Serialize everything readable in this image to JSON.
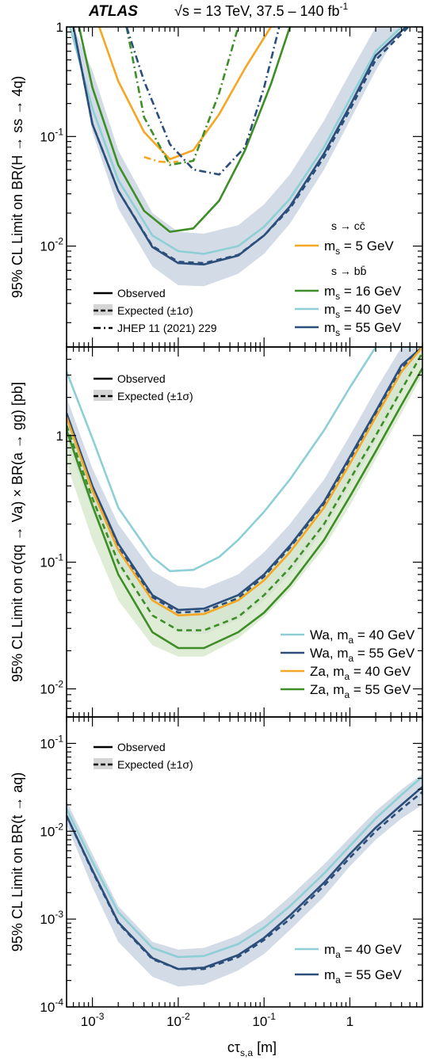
{
  "header": {
    "experiment": "ATLAS",
    "energy": "√s = 13 TeV, 37.5 – 140 fb",
    "energy_sup": "-1"
  },
  "xaxis": {
    "label": "cτ",
    "label_sub": "s,a",
    "label_unit": " [m]",
    "scale": "log",
    "range": [
      0.0005,
      7
    ],
    "ticks": [
      {
        "v": 0.001,
        "text": "10",
        "sup": "-3"
      },
      {
        "v": 0.01,
        "text": "10",
        "sup": "-2"
      },
      {
        "v": 0.1,
        "text": "10",
        "sup": "-1"
      },
      {
        "v": 1,
        "text": "1",
        "sup": ""
      }
    ]
  },
  "chart_data": [
    {
      "type": "line",
      "ylabel": "95% CL Limit on BR(H → ss → 4q)",
      "yscale": "log",
      "ylim": [
        0.0012,
        1
      ],
      "yticks": [
        {
          "v": 1,
          "text": "1",
          "sup": ""
        },
        {
          "v": 0.1,
          "text": "10",
          "sup": "-1"
        },
        {
          "v": 0.01,
          "text": "10",
          "sup": "-2"
        }
      ],
      "legend_style": [
        {
          "label": "Observed",
          "style": "solid"
        },
        {
          "label": "Expected (±1σ)",
          "style": "dashed-band"
        },
        {
          "label": "JHEP 11 (2021) 229",
          "style": "dashdot"
        }
      ],
      "legend_groups": [
        {
          "title": "s → cc̄",
          "entries": [
            {
              "label": "m",
              "sub": "s",
              "rest": " = 5 GeV",
              "color": "#F5A623"
            }
          ]
        },
        {
          "title": "s → bb̄",
          "entries": [
            {
              "label": "m",
              "sub": "s",
              "rest": " = 16 GeV",
              "color": "#3E8E28"
            },
            {
              "label": "m",
              "sub": "s",
              "rest": " = 40 GeV",
              "color": "#8ECFD6"
            },
            {
              "label": "m",
              "sub": "s",
              "rest": " = 55 GeV",
              "color": "#2B4E7A"
            }
          ]
        }
      ],
      "band": {
        "color": "#D2DBE6",
        "x": [
          0.0006,
          0.001,
          0.002,
          0.005,
          0.01,
          0.02,
          0.05,
          0.1,
          0.2,
          0.5,
          1,
          2,
          4
        ],
        "lo": [
          1.0,
          0.11,
          0.022,
          0.0065,
          0.0044,
          0.0043,
          0.0056,
          0.0085,
          0.016,
          0.05,
          0.14,
          0.4,
          1.0
        ],
        "hi": [
          1.0,
          0.4,
          0.075,
          0.02,
          0.0135,
          0.013,
          0.0155,
          0.024,
          0.045,
          0.14,
          0.38,
          1.0,
          1.0
        ]
      },
      "series": [
        {
          "name": "m_s = 5 GeV",
          "color": "#F5A623",
          "style": "solid",
          "x": [
            0.0012,
            0.002,
            0.004,
            0.008,
            0.015,
            0.03,
            0.06,
            0.12
          ],
          "y": [
            1.0,
            0.32,
            0.11,
            0.062,
            0.075,
            0.16,
            0.42,
            1.0
          ]
        },
        {
          "name": "m_s = 5 GeV (JHEP)",
          "color": "#F5A623",
          "style": "dashdot",
          "x": [
            0.004,
            0.006,
            0.008,
            0.01
          ],
          "y": [
            0.065,
            0.059,
            0.058,
            0.059
          ]
        },
        {
          "name": "m_s = 16 GeV",
          "color": "#3E8E28",
          "style": "solid",
          "x": [
            0.0007,
            0.001,
            0.002,
            0.004,
            0.008,
            0.015,
            0.03,
            0.06,
            0.12,
            0.2
          ],
          "y": [
            1.0,
            0.28,
            0.055,
            0.021,
            0.0135,
            0.0145,
            0.026,
            0.075,
            0.3,
            1.0
          ]
        },
        {
          "name": "m_s = 16 GeV (JHEP)",
          "color": "#3E8E28",
          "style": "dashdot",
          "x": [
            0.0025,
            0.004,
            0.008,
            0.015,
            0.03,
            0.05
          ],
          "y": [
            1.0,
            0.15,
            0.055,
            0.06,
            0.25,
            1.0
          ]
        },
        {
          "name": "m_s = 40 GeV",
          "color": "#8ECFD6",
          "style": "solid",
          "x": [
            0.00055,
            0.001,
            0.002,
            0.005,
            0.01,
            0.02,
            0.05,
            0.1,
            0.2,
            0.5,
            1,
            2,
            4
          ],
          "y": [
            1.0,
            0.18,
            0.04,
            0.0125,
            0.009,
            0.0085,
            0.01,
            0.015,
            0.027,
            0.08,
            0.22,
            0.6,
            1.0
          ]
        },
        {
          "name": "m_s = 55 GeV",
          "color": "#2B4E7A",
          "style": "solid",
          "x": [
            0.0006,
            0.001,
            0.002,
            0.005,
            0.01,
            0.02,
            0.05,
            0.1,
            0.2,
            0.5,
            1,
            2,
            4.5
          ],
          "y": [
            1.0,
            0.13,
            0.032,
            0.0098,
            0.007,
            0.0068,
            0.0082,
            0.0125,
            0.023,
            0.07,
            0.19,
            0.55,
            1.0
          ]
        },
        {
          "name": "m_s = 55 GeV expected",
          "color": "#2B4E7A",
          "style": "dashed",
          "x": [
            0.0006,
            0.001,
            0.002,
            0.005,
            0.01,
            0.02,
            0.05,
            0.1,
            0.2,
            0.5,
            1,
            2,
            4.8
          ],
          "y": [
            1.0,
            0.13,
            0.032,
            0.01,
            0.0072,
            0.007,
            0.0083,
            0.0125,
            0.022,
            0.065,
            0.175,
            0.5,
            1.0
          ]
        },
        {
          "name": "m_s = 55 GeV (JHEP)",
          "color": "#2B4E7A",
          "style": "dashdot",
          "x": [
            0.0025,
            0.004,
            0.008,
            0.015,
            0.03,
            0.06,
            0.1,
            0.15
          ],
          "y": [
            1.0,
            0.32,
            0.085,
            0.05,
            0.045,
            0.08,
            0.28,
            1.0
          ]
        }
      ]
    },
    {
      "type": "line",
      "ylabel": "95% CL Limit on σ(qq → Va) × BR(a → gg) [pb]",
      "yscale": "log",
      "ylim": [
        0.006,
        5
      ],
      "yticks": [
        {
          "v": 1,
          "text": "1",
          "sup": ""
        },
        {
          "v": 0.1,
          "text": "10",
          "sup": "-1"
        },
        {
          "v": 0.01,
          "text": "10",
          "sup": "-2"
        }
      ],
      "legend_style": [
        {
          "label": "Observed",
          "style": "solid"
        },
        {
          "label": "Expected (±1σ)",
          "style": "dashed-band"
        }
      ],
      "legend_entries": [
        {
          "label": "Wa, m",
          "sub": "a",
          "rest": " = 40 GeV",
          "color": "#8ECFD6"
        },
        {
          "label": "Wa, m",
          "sub": "a",
          "rest": " = 55 GeV",
          "color": "#2B4E7A"
        },
        {
          "label": "Za, m",
          "sub": "a",
          "rest": " = 40 GeV",
          "color": "#F5A623"
        },
        {
          "label": "Za, m",
          "sub": "a",
          "rest": " = 55 GeV",
          "color": "#3E8E28"
        }
      ],
      "band": {
        "color": "#D2DBE6",
        "x": [
          0.0005,
          0.001,
          0.002,
          0.005,
          0.01,
          0.02,
          0.05,
          0.1,
          0.2,
          0.5,
          1,
          2,
          4,
          7
        ],
        "lo": [
          0.9,
          0.25,
          0.09,
          0.04,
          0.028,
          0.027,
          0.035,
          0.05,
          0.08,
          0.18,
          0.4,
          0.9,
          2.2,
          4.5
        ],
        "hi": [
          2.0,
          0.55,
          0.2,
          0.085,
          0.065,
          0.062,
          0.08,
          0.12,
          0.2,
          0.45,
          1.0,
          2.3,
          5,
          5
        ]
      },
      "band2": {
        "color": "#D8E8CC",
        "x": [
          0.0005,
          0.001,
          0.002,
          0.005,
          0.01,
          0.02,
          0.05,
          0.1,
          0.2,
          0.5,
          1,
          2,
          4,
          7
        ],
        "lo": [
          0.6,
          0.15,
          0.05,
          0.022,
          0.018,
          0.018,
          0.025,
          0.037,
          0.06,
          0.13,
          0.28,
          0.65,
          1.5,
          3
        ],
        "hi": [
          1.3,
          0.35,
          0.12,
          0.05,
          0.04,
          0.04,
          0.055,
          0.08,
          0.13,
          0.3,
          0.65,
          1.5,
          3.4,
          5
        ]
      },
      "series": [
        {
          "name": "Wa, m_a = 40 GeV",
          "color": "#8ECFD6",
          "style": "solid",
          "x": [
            0.0005,
            0.001,
            0.002,
            0.005,
            0.008,
            0.015,
            0.03,
            0.05,
            0.1,
            0.2,
            0.5,
            1,
            2,
            4,
            7
          ],
          "y": [
            3.2,
            0.95,
            0.27,
            0.11,
            0.085,
            0.087,
            0.11,
            0.15,
            0.25,
            0.45,
            1.1,
            2.4,
            5,
            5,
            5
          ]
        },
        {
          "name": "Wa, m_a = 55 GeV",
          "color": "#2B4E7A",
          "style": "solid",
          "x": [
            0.0005,
            0.001,
            0.002,
            0.005,
            0.01,
            0.02,
            0.05,
            0.1,
            0.2,
            0.5,
            1,
            2,
            4,
            7
          ],
          "y": [
            1.5,
            0.4,
            0.14,
            0.055,
            0.042,
            0.043,
            0.055,
            0.08,
            0.135,
            0.3,
            0.68,
            1.55,
            3.6,
            5
          ]
        },
        {
          "name": "Wa, m_a = 55 GeV expected",
          "color": "#2B4E7A",
          "style": "dashed",
          "x": [
            0.0005,
            0.001,
            0.002,
            0.005,
            0.01,
            0.02,
            0.05,
            0.1,
            0.2,
            0.5,
            1,
            2,
            4,
            7
          ],
          "y": [
            1.4,
            0.38,
            0.13,
            0.053,
            0.04,
            0.041,
            0.052,
            0.077,
            0.13,
            0.29,
            0.65,
            1.5,
            3.4,
            5
          ]
        },
        {
          "name": "Za, m_a = 40 GeV",
          "color": "#F5A623",
          "style": "solid",
          "x": [
            0.0005,
            0.001,
            0.002,
            0.005,
            0.01,
            0.02,
            0.05,
            0.1,
            0.2,
            0.5,
            1,
            2,
            4,
            7
          ],
          "y": [
            1.4,
            0.37,
            0.125,
            0.05,
            0.038,
            0.039,
            0.05,
            0.072,
            0.12,
            0.27,
            0.6,
            1.4,
            3.2,
            5
          ]
        },
        {
          "name": "Za, m_a = 55 GeV",
          "color": "#3E8E28",
          "style": "solid",
          "x": [
            0.0005,
            0.001,
            0.002,
            0.005,
            0.01,
            0.02,
            0.05,
            0.1,
            0.2,
            0.5,
            1,
            2,
            4,
            7
          ],
          "y": [
            1.1,
            0.28,
            0.08,
            0.028,
            0.021,
            0.021,
            0.028,
            0.04,
            0.066,
            0.15,
            0.33,
            0.75,
            1.75,
            3.4
          ]
        },
        {
          "name": "Za, m_a = 55 GeV expected",
          "color": "#3E8E28",
          "style": "dashed",
          "x": [
            0.0005,
            0.001,
            0.002,
            0.005,
            0.01,
            0.02,
            0.05,
            0.1,
            0.2,
            0.5,
            1,
            2,
            4,
            7
          ],
          "y": [
            1.2,
            0.32,
            0.1,
            0.038,
            0.029,
            0.029,
            0.037,
            0.055,
            0.09,
            0.2,
            0.45,
            1.0,
            2.3,
            4.5
          ]
        }
      ]
    },
    {
      "type": "line",
      "ylabel": "95% CL Limit on BR(t → aq)",
      "yscale": "log",
      "ylim": [
        0.0001,
        0.2
      ],
      "yticks": [
        {
          "v": 0.1,
          "text": "10",
          "sup": "-1"
        },
        {
          "v": 0.01,
          "text": "10",
          "sup": "-2"
        },
        {
          "v": 0.001,
          "text": "10",
          "sup": "-3"
        },
        {
          "v": 0.0001,
          "text": "10",
          "sup": "-4"
        }
      ],
      "legend_style": [
        {
          "label": "Observed",
          "style": "solid"
        },
        {
          "label": "Expected (±1σ)",
          "style": "dashed-band"
        }
      ],
      "legend_entries": [
        {
          "label": "m",
          "sub": "a",
          "rest": " = 40 GeV",
          "color": "#8ECFD6"
        },
        {
          "label": "m",
          "sub": "a",
          "rest": " = 55 GeV",
          "color": "#2B4E7A"
        }
      ],
      "band": {
        "color": "#D2DBE6",
        "x": [
          0.0005,
          0.001,
          0.002,
          0.005,
          0.01,
          0.02,
          0.05,
          0.1,
          0.2,
          0.5,
          1,
          2,
          4,
          7
        ],
        "lo": [
          0.012,
          0.0023,
          0.00055,
          0.00022,
          0.00017,
          0.00018,
          0.00026,
          0.0004,
          0.00075,
          0.0018,
          0.004,
          0.008,
          0.014,
          0.02
        ],
        "hi": [
          0.022,
          0.0055,
          0.0014,
          0.00055,
          0.00045,
          0.00047,
          0.00065,
          0.001,
          0.0018,
          0.0042,
          0.0085,
          0.017,
          0.03,
          0.045
        ]
      },
      "series": [
        {
          "name": "m_a = 40 GeV",
          "color": "#8ECFD6",
          "style": "solid",
          "x": [
            0.0005,
            0.001,
            0.002,
            0.005,
            0.01,
            0.02,
            0.05,
            0.1,
            0.2,
            0.5,
            1,
            2,
            4,
            7
          ],
          "y": [
            0.018,
            0.0045,
            0.0012,
            0.00047,
            0.00037,
            0.00038,
            0.00052,
            0.0008,
            0.0014,
            0.0033,
            0.0068,
            0.014,
            0.026,
            0.042
          ]
        },
        {
          "name": "m_a = 55 GeV",
          "color": "#2B4E7A",
          "style": "solid",
          "x": [
            0.0005,
            0.001,
            0.002,
            0.005,
            0.01,
            0.02,
            0.05,
            0.1,
            0.2,
            0.5,
            1,
            2,
            4,
            7
          ],
          "y": [
            0.015,
            0.0036,
            0.00092,
            0.00036,
            0.00027,
            0.00028,
            0.00039,
            0.00061,
            0.0011,
            0.0026,
            0.0055,
            0.011,
            0.02,
            0.032
          ]
        },
        {
          "name": "m_a = 55 GeV expected",
          "color": "#2B4E7A",
          "style": "dashed",
          "x": [
            0.0005,
            0.001,
            0.002,
            0.005,
            0.01,
            0.02,
            0.05,
            0.1,
            0.2,
            0.5,
            1,
            2,
            4,
            7
          ],
          "y": [
            0.015,
            0.0035,
            0.0009,
            0.00035,
            0.00027,
            0.00027,
            0.00037,
            0.00058,
            0.001,
            0.0024,
            0.005,
            0.01,
            0.018,
            0.028
          ]
        }
      ]
    }
  ]
}
